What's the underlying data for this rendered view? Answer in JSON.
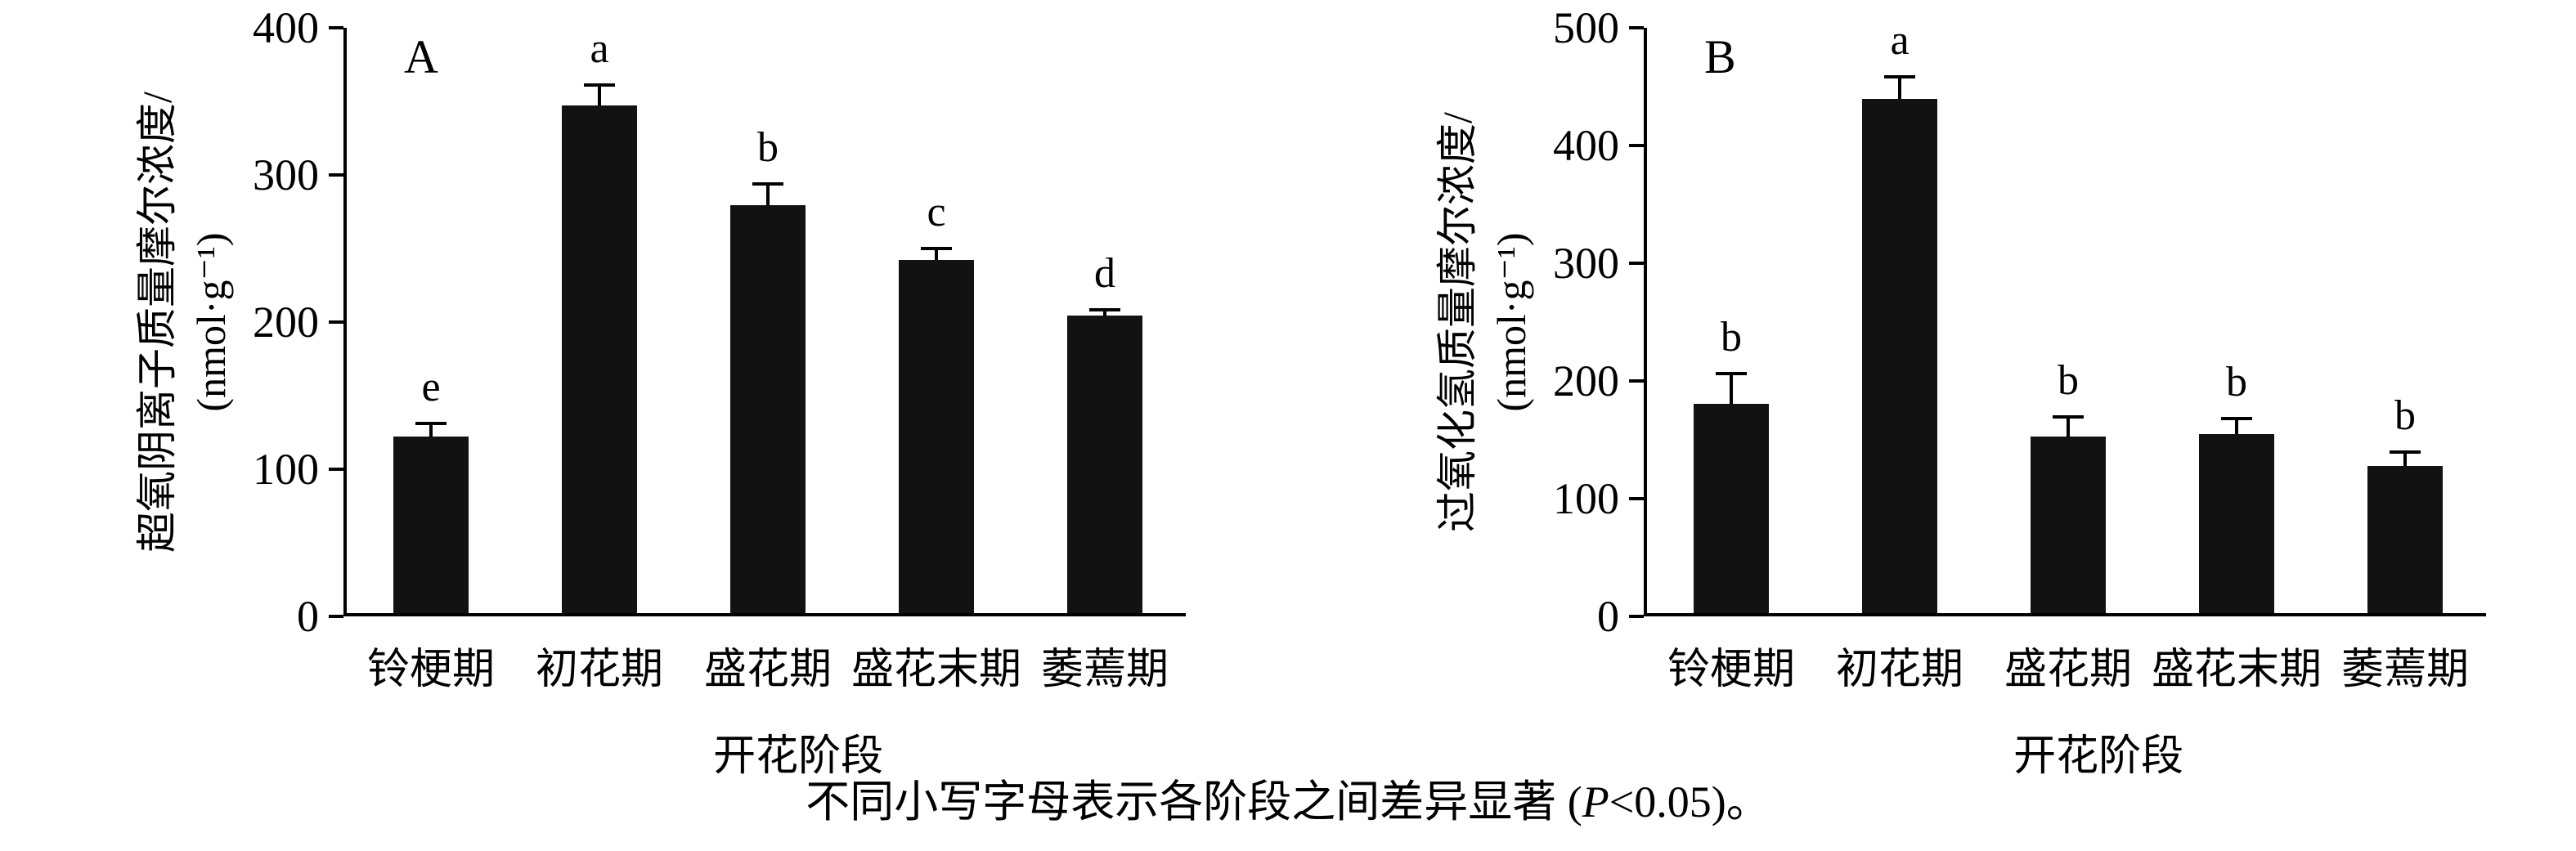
{
  "figure": {
    "caption": {
      "prefix": "不同小写字母表示各阶段之间差异显著 (",
      "p_symbol": "P",
      "suffix": "<0.05)。"
    }
  },
  "chart_data": [
    {
      "type": "bar",
      "panel_label": "A",
      "title": "",
      "ylabel_line1": "超氧阴离子质量摩尔浓度/",
      "ylabel_line2": "(nmol·g⁻¹)",
      "xlabel": "开花阶段",
      "categories": [
        "铃梗期",
        "初花期",
        "盛花期",
        "盛花末期",
        "萎蔫期"
      ],
      "values": [
        120,
        345,
        277,
        240,
        202
      ],
      "errors": [
        10,
        15,
        16,
        9,
        5
      ],
      "sig_letters": [
        "e",
        "a",
        "b",
        "c",
        "d"
      ],
      "ylim": [
        0,
        400
      ],
      "yticks": [
        0,
        100,
        200,
        300,
        400
      ],
      "bar_color": "#121212",
      "grid": "off",
      "legend": "none"
    },
    {
      "type": "bar",
      "panel_label": "B",
      "title": "",
      "ylabel_line1": "过氧化氢质量摩尔浓度/",
      "ylabel_line2": "(nmol·g⁻¹)",
      "xlabel": "开花阶段",
      "categories": [
        "铃梗期",
        "初花期",
        "盛花期",
        "盛花末期",
        "萎蔫期"
      ],
      "values": [
        178,
        437,
        150,
        152,
        125
      ],
      "errors": [
        27,
        20,
        18,
        15,
        13
      ],
      "sig_letters": [
        "b",
        "a",
        "b",
        "b",
        "b"
      ],
      "ylim": [
        0,
        500
      ],
      "yticks": [
        0,
        100,
        200,
        300,
        400,
        500
      ],
      "bar_color": "#121212",
      "grid": "off",
      "legend": "none"
    }
  ]
}
